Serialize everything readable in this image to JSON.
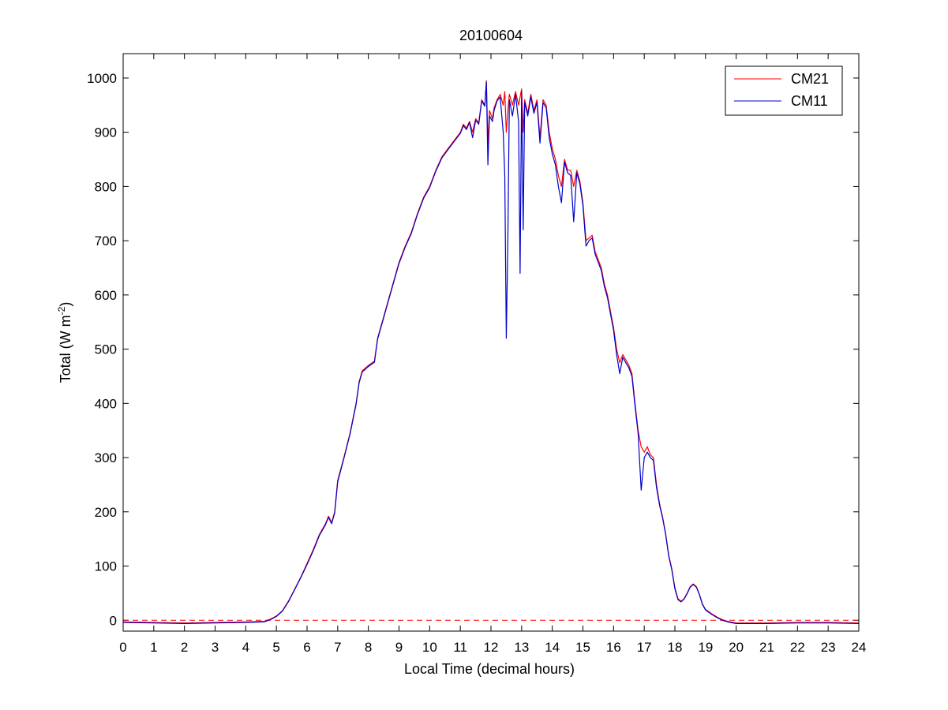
{
  "chart_data": {
    "type": "line",
    "title": "20100604",
    "xlabel": "Local Time (decimal hours)",
    "ylabel": {
      "main": "Total (W m",
      "superscript": "-2",
      "tail": ")"
    },
    "xlim": [
      0,
      24
    ],
    "ylim": [
      -20,
      1045
    ],
    "xticks": [
      0,
      1,
      2,
      3,
      4,
      5,
      6,
      7,
      8,
      9,
      10,
      11,
      12,
      13,
      14,
      15,
      16,
      17,
      18,
      19,
      20,
      21,
      22,
      23,
      24
    ],
    "yticks": [
      0,
      100,
      200,
      300,
      400,
      500,
      600,
      700,
      800,
      900,
      1000
    ],
    "grid": false,
    "legend_position": "top-right",
    "zero_reference_line": {
      "y": 0,
      "style": "dashed",
      "color": "#ff0000"
    },
    "series": [
      {
        "name": "CM21",
        "color": "#ff0000",
        "points": [
          [
            0,
            -3
          ],
          [
            1,
            -4
          ],
          [
            2,
            -5
          ],
          [
            3,
            -4
          ],
          [
            4,
            -3
          ],
          [
            4.6,
            -2
          ],
          [
            4.8,
            2
          ],
          [
            5,
            8
          ],
          [
            5.2,
            18
          ],
          [
            5.4,
            36
          ],
          [
            5.6,
            58
          ],
          [
            5.8,
            80
          ],
          [
            6,
            105
          ],
          [
            6.2,
            130
          ],
          [
            6.4,
            158
          ],
          [
            6.6,
            178
          ],
          [
            6.7,
            192
          ],
          [
            6.8,
            180
          ],
          [
            6.9,
            200
          ],
          [
            7,
            258
          ],
          [
            7.2,
            300
          ],
          [
            7.4,
            345
          ],
          [
            7.6,
            400
          ],
          [
            7.7,
            440
          ],
          [
            7.8,
            460
          ],
          [
            8,
            470
          ],
          [
            8.2,
            478
          ],
          [
            8.3,
            520
          ],
          [
            8.5,
            560
          ],
          [
            8.7,
            600
          ],
          [
            8.9,
            640
          ],
          [
            9,
            660
          ],
          [
            9.2,
            690
          ],
          [
            9.4,
            715
          ],
          [
            9.6,
            750
          ],
          [
            9.8,
            780
          ],
          [
            10,
            800
          ],
          [
            10.2,
            830
          ],
          [
            10.4,
            855
          ],
          [
            10.6,
            870
          ],
          [
            10.8,
            885
          ],
          [
            11,
            900
          ],
          [
            11.1,
            915
          ],
          [
            11.2,
            908
          ],
          [
            11.3,
            920
          ],
          [
            11.4,
            900
          ],
          [
            11.5,
            925
          ],
          [
            11.6,
            918
          ],
          [
            11.7,
            960
          ],
          [
            11.8,
            950
          ],
          [
            11.85,
            995
          ],
          [
            11.9,
            880
          ],
          [
            11.95,
            940
          ],
          [
            12.05,
            925
          ],
          [
            12.1,
            945
          ],
          [
            12.2,
            960
          ],
          [
            12.3,
            970
          ],
          [
            12.4,
            950
          ],
          [
            12.45,
            975
          ],
          [
            12.5,
            900
          ],
          [
            12.55,
            940
          ],
          [
            12.6,
            970
          ],
          [
            12.7,
            950
          ],
          [
            12.8,
            975
          ],
          [
            12.9,
            950
          ],
          [
            13,
            980
          ],
          [
            13.05,
            900
          ],
          [
            13.1,
            960
          ],
          [
            13.2,
            935
          ],
          [
            13.3,
            970
          ],
          [
            13.4,
            940
          ],
          [
            13.5,
            960
          ],
          [
            13.6,
            890
          ],
          [
            13.7,
            960
          ],
          [
            13.8,
            950
          ],
          [
            13.9,
            900
          ],
          [
            14,
            870
          ],
          [
            14.1,
            850
          ],
          [
            14.2,
            820
          ],
          [
            14.3,
            800
          ],
          [
            14.4,
            850
          ],
          [
            14.5,
            830
          ],
          [
            14.6,
            830
          ],
          [
            14.7,
            800
          ],
          [
            14.8,
            830
          ],
          [
            14.9,
            810
          ],
          [
            15,
            770
          ],
          [
            15.1,
            700
          ],
          [
            15.2,
            705
          ],
          [
            15.3,
            710
          ],
          [
            15.4,
            680
          ],
          [
            15.5,
            665
          ],
          [
            15.6,
            650
          ],
          [
            15.7,
            620
          ],
          [
            15.8,
            600
          ],
          [
            15.9,
            570
          ],
          [
            16,
            540
          ],
          [
            16.1,
            500
          ],
          [
            16.2,
            475
          ],
          [
            16.3,
            490
          ],
          [
            16.4,
            480
          ],
          [
            16.5,
            470
          ],
          [
            16.6,
            455
          ],
          [
            16.7,
            400
          ],
          [
            16.8,
            350
          ],
          [
            16.9,
            320
          ],
          [
            17,
            310
          ],
          [
            17.1,
            320
          ],
          [
            17.2,
            305
          ],
          [
            17.3,
            300
          ],
          [
            17.4,
            250
          ],
          [
            17.5,
            215
          ],
          [
            17.6,
            190
          ],
          [
            17.7,
            160
          ],
          [
            17.8,
            120
          ],
          [
            17.9,
            95
          ],
          [
            18,
            60
          ],
          [
            18.1,
            40
          ],
          [
            18.2,
            35
          ],
          [
            18.3,
            40
          ],
          [
            18.4,
            50
          ],
          [
            18.5,
            62
          ],
          [
            18.6,
            67
          ],
          [
            18.7,
            62
          ],
          [
            18.8,
            48
          ],
          [
            18.9,
            30
          ],
          [
            19,
            20
          ],
          [
            19.2,
            12
          ],
          [
            19.4,
            5
          ],
          [
            19.6,
            0
          ],
          [
            19.8,
            -3
          ],
          [
            20,
            -5
          ],
          [
            21,
            -5
          ],
          [
            22,
            -4
          ],
          [
            23,
            -4
          ],
          [
            24,
            -5
          ]
        ]
      },
      {
        "name": "CM11",
        "color": "#0000cc",
        "points": [
          [
            0,
            -4
          ],
          [
            1,
            -5
          ],
          [
            2,
            -6
          ],
          [
            3,
            -5
          ],
          [
            4,
            -4
          ],
          [
            4.6,
            -3
          ],
          [
            4.8,
            1
          ],
          [
            5,
            7
          ],
          [
            5.2,
            17
          ],
          [
            5.4,
            35
          ],
          [
            5.6,
            57
          ],
          [
            5.8,
            79
          ],
          [
            6,
            103
          ],
          [
            6.2,
            128
          ],
          [
            6.4,
            156
          ],
          [
            6.6,
            176
          ],
          [
            6.7,
            190
          ],
          [
            6.8,
            178
          ],
          [
            6.9,
            198
          ],
          [
            7,
            255
          ],
          [
            7.2,
            298
          ],
          [
            7.4,
            343
          ],
          [
            7.6,
            398
          ],
          [
            7.7,
            438
          ],
          [
            7.8,
            458
          ],
          [
            8,
            468
          ],
          [
            8.2,
            476
          ],
          [
            8.3,
            518
          ],
          [
            8.5,
            558
          ],
          [
            8.7,
            598
          ],
          [
            8.9,
            638
          ],
          [
            9,
            658
          ],
          [
            9.2,
            688
          ],
          [
            9.4,
            713
          ],
          [
            9.6,
            748
          ],
          [
            9.8,
            778
          ],
          [
            10,
            798
          ],
          [
            10.2,
            828
          ],
          [
            10.4,
            853
          ],
          [
            10.6,
            868
          ],
          [
            10.8,
            883
          ],
          [
            11,
            898
          ],
          [
            11.1,
            912
          ],
          [
            11.2,
            905
          ],
          [
            11.3,
            918
          ],
          [
            11.4,
            890
          ],
          [
            11.5,
            922
          ],
          [
            11.6,
            915
          ],
          [
            11.7,
            958
          ],
          [
            11.8,
            948
          ],
          [
            11.85,
            992
          ],
          [
            11.9,
            840
          ],
          [
            11.95,
            930
          ],
          [
            12.05,
            920
          ],
          [
            12.1,
            940
          ],
          [
            12.2,
            958
          ],
          [
            12.3,
            965
          ],
          [
            12.4,
            900
          ],
          [
            12.45,
            820
          ],
          [
            12.5,
            520
          ],
          [
            12.55,
            700
          ],
          [
            12.6,
            960
          ],
          [
            12.7,
            930
          ],
          [
            12.8,
            970
          ],
          [
            12.9,
            920
          ],
          [
            12.95,
            640
          ],
          [
            13,
            975
          ],
          [
            13.05,
            720
          ],
          [
            13.1,
            955
          ],
          [
            13.2,
            930
          ],
          [
            13.3,
            965
          ],
          [
            13.4,
            935
          ],
          [
            13.5,
            955
          ],
          [
            13.6,
            880
          ],
          [
            13.7,
            955
          ],
          [
            13.8,
            945
          ],
          [
            13.9,
            890
          ],
          [
            14,
            860
          ],
          [
            14.1,
            840
          ],
          [
            14.2,
            800
          ],
          [
            14.3,
            770
          ],
          [
            14.4,
            845
          ],
          [
            14.5,
            825
          ],
          [
            14.6,
            820
          ],
          [
            14.7,
            735
          ],
          [
            14.8,
            825
          ],
          [
            14.9,
            805
          ],
          [
            15,
            765
          ],
          [
            15.1,
            690
          ],
          [
            15.2,
            700
          ],
          [
            15.3,
            705
          ],
          [
            15.4,
            675
          ],
          [
            15.5,
            660
          ],
          [
            15.6,
            645
          ],
          [
            15.7,
            615
          ],
          [
            15.8,
            595
          ],
          [
            15.9,
            565
          ],
          [
            16,
            535
          ],
          [
            16.1,
            490
          ],
          [
            16.2,
            455
          ],
          [
            16.3,
            485
          ],
          [
            16.4,
            475
          ],
          [
            16.5,
            465
          ],
          [
            16.6,
            450
          ],
          [
            16.7,
            395
          ],
          [
            16.8,
            345
          ],
          [
            16.9,
            240
          ],
          [
            17,
            300
          ],
          [
            17.1,
            310
          ],
          [
            17.2,
            300
          ],
          [
            17.3,
            295
          ],
          [
            17.4,
            245
          ],
          [
            17.5,
            212
          ],
          [
            17.6,
            188
          ],
          [
            17.7,
            158
          ],
          [
            17.8,
            118
          ],
          [
            17.9,
            93
          ],
          [
            18,
            58
          ],
          [
            18.1,
            38
          ],
          [
            18.2,
            34
          ],
          [
            18.3,
            39
          ],
          [
            18.4,
            49
          ],
          [
            18.5,
            61
          ],
          [
            18.6,
            66
          ],
          [
            18.7,
            61
          ],
          [
            18.8,
            47
          ],
          [
            18.9,
            29
          ],
          [
            19,
            19
          ],
          [
            19.2,
            11
          ],
          [
            19.4,
            4
          ],
          [
            19.6,
            -1
          ],
          [
            19.8,
            -4
          ],
          [
            20,
            -6
          ],
          [
            21,
            -6
          ],
          [
            22,
            -5
          ],
          [
            23,
            -5
          ],
          [
            24,
            -6
          ]
        ]
      }
    ]
  }
}
